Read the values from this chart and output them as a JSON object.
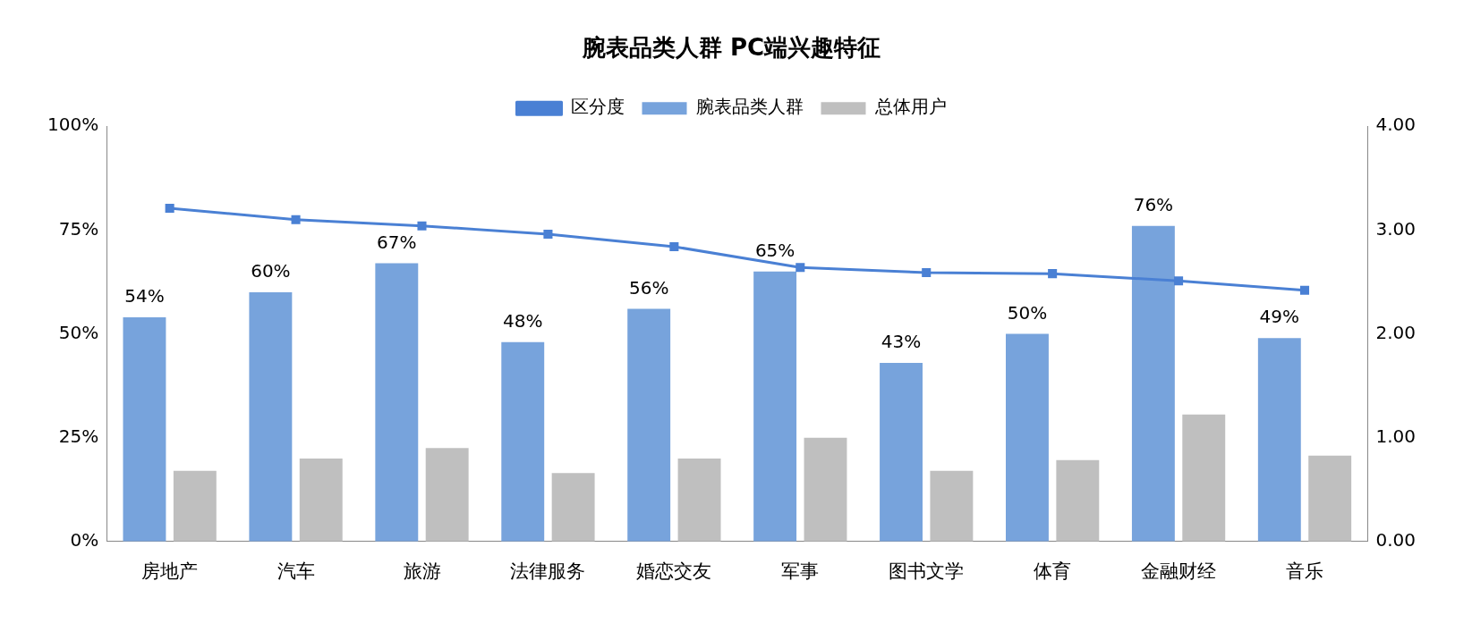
{
  "chart_data": {
    "type": "bar",
    "title": "腕表品类人群 PC端兴趣特征",
    "categories": [
      "房地产",
      "汽车",
      "旅游",
      "法律服务",
      "婚恋交友",
      "军事",
      "图书文学",
      "体育",
      "金融财经",
      "音乐"
    ],
    "series": [
      {
        "name": "腕表品类人群",
        "color": "#77a3dc",
        "values": [
          54,
          60,
          67,
          48,
          56,
          65,
          43,
          50,
          76,
          49
        ],
        "value_labels": [
          "54%",
          "60%",
          "67%",
          "48%",
          "56%",
          "65%",
          "43%",
          "50%",
          "76%",
          "49%"
        ]
      },
      {
        "name": "总体用户",
        "color": "#bfbfbf",
        "values": [
          17,
          20,
          22.5,
          16.5,
          20,
          25,
          17,
          19.6,
          30.6,
          20.7
        ]
      },
      {
        "name": "区分度",
        "type": "line",
        "axis": "y2",
        "color": "#4a80d4",
        "marker": "square",
        "values": [
          3.21,
          3.1,
          3.04,
          2.96,
          2.84,
          2.64,
          2.59,
          2.58,
          2.51,
          2.42
        ]
      }
    ],
    "ylim": [
      0,
      100
    ],
    "yticks": [
      {
        "value": 0,
        "label": "0%"
      },
      {
        "value": 25,
        "label": "25%"
      },
      {
        "value": 50,
        "label": "50%"
      },
      {
        "value": 75,
        "label": "75%"
      },
      {
        "value": 100,
        "label": "100%"
      }
    ],
    "y2lim": [
      0,
      4
    ],
    "y2ticks": [
      {
        "value": 0,
        "label": "0.00"
      },
      {
        "value": 1,
        "label": "1.00"
      },
      {
        "value": 2,
        "label": "2.00"
      },
      {
        "value": 3,
        "label": "3.00"
      },
      {
        "value": 4,
        "label": "4.00"
      }
    ],
    "legend": "top",
    "grid": false
  }
}
